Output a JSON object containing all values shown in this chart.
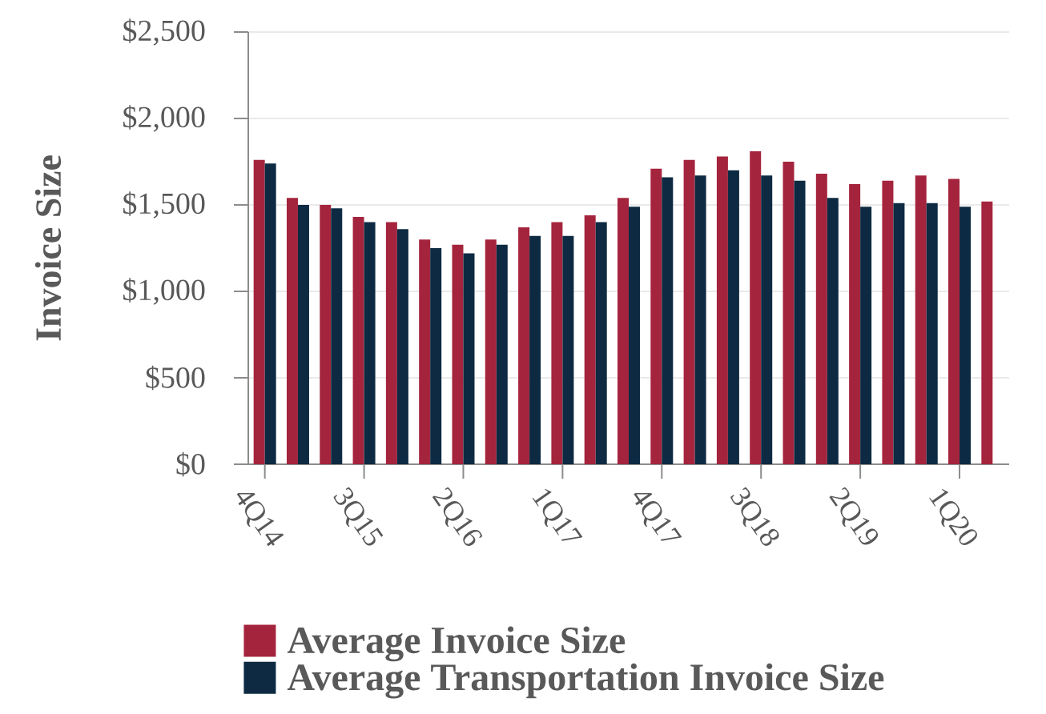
{
  "chart_data": {
    "type": "bar",
    "ylabel": "Invoice Size",
    "categories": [
      "4Q14",
      null,
      null,
      "3Q15",
      null,
      null,
      "2Q16",
      null,
      null,
      "1Q17",
      null,
      null,
      "4Q17",
      null,
      null,
      "3Q18",
      null,
      null,
      "2Q19",
      null,
      null,
      "1Q20",
      null
    ],
    "series": [
      {
        "name": "Average Invoice Size",
        "color": "#a5243d",
        "values": [
          1760,
          1540,
          1500,
          1430,
          1400,
          1300,
          1270,
          1300,
          1370,
          1400,
          1440,
          1540,
          1710,
          1760,
          1780,
          1810,
          1750,
          1680,
          1620,
          1640,
          1670,
          1650,
          1520
        ]
      },
      {
        "name": "Average Transportation Invoice Size",
        "color": "#0d2a42",
        "values": [
          1740,
          1500,
          1480,
          1400,
          1360,
          1250,
          1220,
          1270,
          1320,
          1320,
          1400,
          1490,
          1660,
          1670,
          1700,
          1670,
          1640,
          1540,
          1490,
          1510,
          1510,
          1490,
          null
        ]
      }
    ],
    "ylim": [
      0,
      2500
    ],
    "yticks": [
      {
        "value": 0,
        "label": "$0"
      },
      {
        "value": 500,
        "label": "$500"
      },
      {
        "value": 1000,
        "label": "$1,000"
      },
      {
        "value": 1500,
        "label": "$1,500"
      },
      {
        "value": 2000,
        "label": "$2,000"
      },
      {
        "value": 2500,
        "label": "$2,500"
      }
    ],
    "grid": "y",
    "legend": "bottom"
  }
}
